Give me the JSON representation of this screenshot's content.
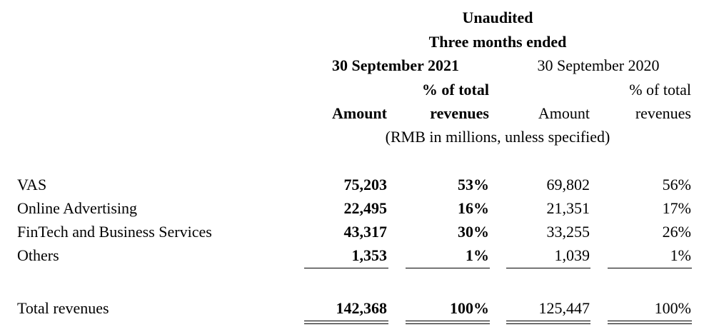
{
  "header": {
    "unaudited": "Unaudited",
    "period": "Three months ended",
    "date_2021": "30 September 2021",
    "date_2020": "30 September 2020",
    "pct_line1": "% of total",
    "pct_line2": "revenues",
    "amount": "Amount",
    "units": "(RMB in millions, unless specified)"
  },
  "rows": [
    {
      "label": "VAS",
      "amount_2021": "75,203",
      "pct_2021": "53%",
      "amount_2020": "69,802",
      "pct_2020": "56%"
    },
    {
      "label": "Online Advertising",
      "amount_2021": "22,495",
      "pct_2021": "16%",
      "amount_2020": "21,351",
      "pct_2020": "17%"
    },
    {
      "label": "FinTech and Business Services",
      "amount_2021": "43,317",
      "pct_2021": "30%",
      "amount_2020": "33,255",
      "pct_2020": "26%"
    },
    {
      "label": "Others",
      "amount_2021": "1,353",
      "pct_2021": "1%",
      "amount_2020": "1,039",
      "pct_2020": "1%"
    }
  ],
  "total": {
    "label": "Total revenues",
    "amount_2021": "142,368",
    "pct_2021": "100%",
    "amount_2020": "125,447",
    "pct_2020": "100%"
  }
}
